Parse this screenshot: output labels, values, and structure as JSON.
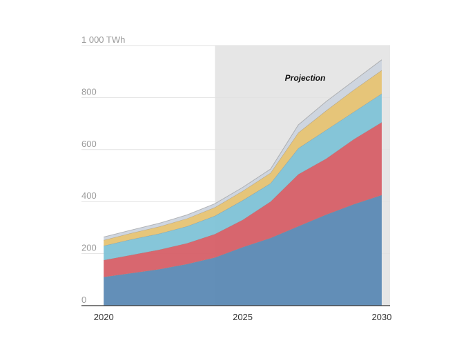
{
  "chart_data": {
    "type": "area",
    "stacked": true,
    "x": [
      2020,
      2021,
      2022,
      2023,
      2024,
      2025,
      2026,
      2027,
      2028,
      2029,
      2030
    ],
    "series": [
      {
        "color": "#5b89b4",
        "values": [
          110,
          125,
          140,
          160,
          185,
          225,
          260,
          305,
          350,
          390,
          425
        ]
      },
      {
        "color": "#d65f67",
        "values": [
          65,
          70,
          75,
          80,
          90,
          105,
          140,
          200,
          215,
          250,
          280
        ]
      },
      {
        "color": "#80c3d7",
        "values": [
          55,
          60,
          62,
          65,
          70,
          75,
          70,
          100,
          110,
          105,
          110
        ]
      },
      {
        "color": "#e6c373",
        "values": [
          22,
          24,
          27,
          30,
          33,
          36,
          40,
          60,
          75,
          85,
          90
        ]
      },
      {
        "color": "#ccd4de",
        "values": [
          12,
          12,
          13,
          14,
          14,
          14,
          15,
          30,
          35,
          35,
          40
        ]
      }
    ],
    "y_ticks": [
      "0",
      "200",
      "400",
      "600",
      "800",
      "1 000 TWh"
    ],
    "y_tick_values": [
      0,
      200,
      400,
      600,
      800,
      1000
    ],
    "x_ticks": [
      "2020",
      "2025",
      "2030"
    ],
    "x_tick_values": [
      2020,
      2025,
      2030
    ],
    "xlim": [
      2019.2,
      2030.3
    ],
    "ylim": [
      0,
      1000
    ],
    "grid": true,
    "annotation": {
      "text": "Projection",
      "shade_from": 2024,
      "shade_to": 2030.3,
      "shade_color": "#e6e6e6"
    }
  }
}
